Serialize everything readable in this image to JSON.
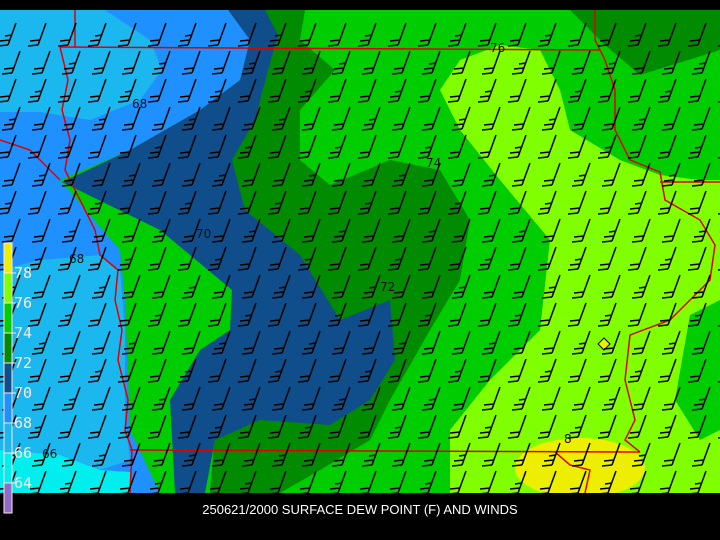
{
  "title": "250621/2000 SURFACE DEW POINT (F) AND WINDS",
  "legend": {
    "labels": [
      "78",
      "76",
      "74",
      "72",
      "70",
      "68",
      "66",
      "64"
    ],
    "colors": [
      "#eeee00",
      "#7fff00",
      "#00cd00",
      "#008b00",
      "#104e8b",
      "#1e90ff",
      "#1ab8ef",
      "#00eeee",
      "#8e6cc8"
    ]
  },
  "contour_labels": [
    "68",
    "70",
    "68",
    "72",
    "74",
    "76",
    "66",
    "8"
  ],
  "colors": {
    "border": "#e00000",
    "barb": "#000000",
    "background": "#000000"
  }
}
